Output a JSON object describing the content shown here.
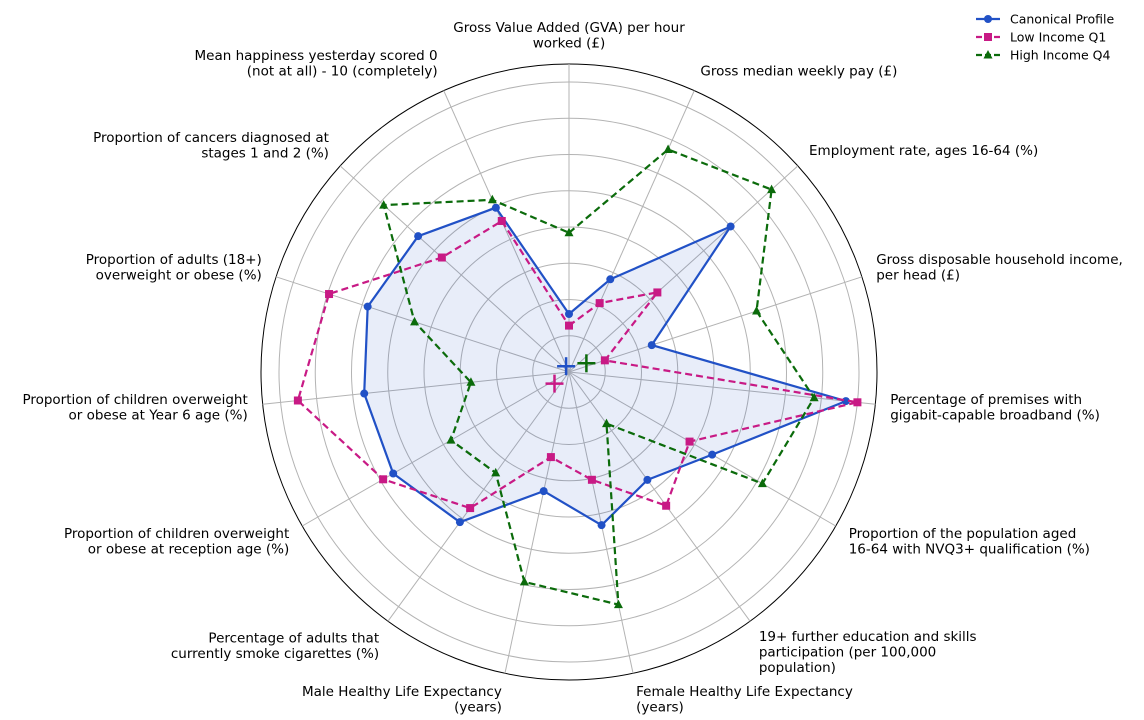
{
  "chart_data": {
    "type": "radar",
    "r_range": [
      0,
      1
    ],
    "grid": true,
    "legend_position": "top-right",
    "axes": [
      "Gross Value Added (GVA) per hour\nworked (£)",
      "Gross median weekly pay (£)",
      "Employment rate, ages 16-64 (%)",
      "Gross disposable household income,\nper head (£)",
      "Percentage of premises with\ngigabit-capable broadband (%)",
      "Proportion of the population aged\n16-64 with NVQ3+ qualification (%)",
      "19+ further education and skills\nparticipation (per 100,000\npopulation)",
      "Female Healthy Life Expectancy\n(years)",
      "Male Healthy Life Expectancy\n(years)",
      "Percentage of adults that\ncurrently smoke cigarettes (%)",
      "Proportion of children overweight\nor obese at reception age (%)",
      "Proportion of children overweight\nor obese at Year 6 age (%)",
      "Proportion of adults (18+)\noverweight or obese (%)",
      "Proportion of cancers diagnosed at\nstages 1 and 2 (%)",
      "Mean happiness yesterday scored 0\n(not at all) - 10 (completely)"
    ],
    "series": [
      {
        "name": "Canonical Profile",
        "color": "#2151c6",
        "marker": "circle",
        "dash": "solid",
        "fill": true,
        "values": [
          0.2,
          0.35,
          0.75,
          0.3,
          0.96,
          0.57,
          0.46,
          0.54,
          0.42,
          0.64,
          0.7,
          0.71,
          0.73,
          0.7,
          0.62
        ],
        "centroid": [
          -0.01,
          0.02
        ]
      },
      {
        "name": "Low Income Q1",
        "color": "#c81a85",
        "marker": "square",
        "dash": "dashed",
        "fill": false,
        "values": [
          0.16,
          0.26,
          0.41,
          0.13,
          1.0,
          0.48,
          0.57,
          0.38,
          0.3,
          0.58,
          0.74,
          0.94,
          0.87,
          0.59,
          0.57
        ],
        "centroid": [
          -0.05,
          -0.04
        ]
      },
      {
        "name": "High Income Q4",
        "color": "#0b6b0b",
        "marker": "triangle",
        "dash": "dashed",
        "fill": false,
        "values": [
          0.48,
          0.84,
          0.94,
          0.68,
          0.85,
          0.77,
          0.22,
          0.82,
          0.74,
          0.43,
          0.47,
          0.34,
          0.56,
          0.86,
          0.65
        ],
        "centroid": [
          0.06,
          0.03
        ]
      }
    ]
  }
}
